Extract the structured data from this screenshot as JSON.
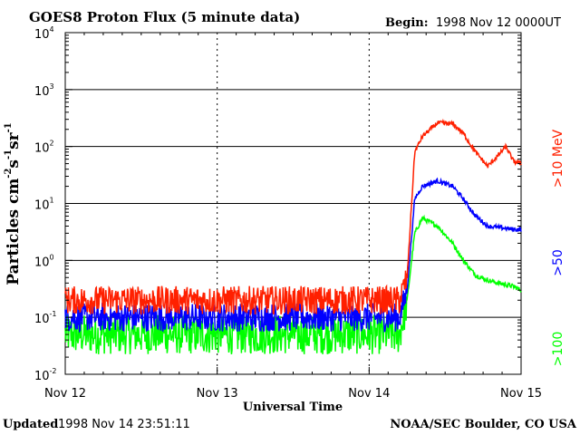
{
  "chart_data": {
    "type": "line",
    "title": "GOES8 Proton Flux (5 minute data)",
    "begin_label": "Begin:",
    "begin_value": "1998 Nov 12 0000UT",
    "xlabel": "Universal Time",
    "ylabel": {
      "text": "Particles cm",
      "sup1": "-2",
      "mid1": "s",
      "sup2": "-1",
      "mid2": "sr",
      "sup3": "-1"
    },
    "x_ticks": [
      "Nov 12",
      "Nov 13",
      "Nov 14",
      "Nov 15"
    ],
    "x_unit": "days since 1998 Nov 12 00:00 UT",
    "xlim": [
      0,
      3
    ],
    "y_scale": "log",
    "ylim": [
      0.01,
      10000
    ],
    "y_ticks": [
      {
        "base": "10",
        "exp": "-2"
      },
      {
        "base": "10",
        "exp": "-1"
      },
      {
        "base": "10",
        "exp": "0"
      },
      {
        "base": "10",
        "exp": "1"
      },
      {
        "base": "10",
        "exp": "2"
      },
      {
        "base": "10",
        "exp": "3"
      },
      {
        "base": "10",
        "exp": "4"
      }
    ],
    "horizontal_grid": true,
    "day_separators": "dashed",
    "series": [
      {
        "name": ">10 MeV",
        "color": "#ff2000",
        "values": [
          [
            0,
            0.2
          ],
          [
            0.5,
            0.2
          ],
          [
            1.0,
            0.2
          ],
          [
            1.5,
            0.2
          ],
          [
            2.0,
            0.2
          ],
          [
            2.2,
            0.2
          ],
          [
            2.25,
            0.5
          ],
          [
            2.3,
            80
          ],
          [
            2.35,
            150
          ],
          [
            2.45,
            260
          ],
          [
            2.55,
            250
          ],
          [
            2.62,
            170
          ],
          [
            2.7,
            80
          ],
          [
            2.78,
            45
          ],
          [
            2.85,
            70
          ],
          [
            2.9,
            100
          ],
          [
            2.95,
            55
          ],
          [
            3.0,
            50
          ]
        ],
        "noise_before": 0.25
      },
      {
        "name": ">50",
        "color": "#0000ff",
        "values": [
          [
            0,
            0.1
          ],
          [
            0.5,
            0.1
          ],
          [
            1.0,
            0.1
          ],
          [
            1.5,
            0.1
          ],
          [
            2.0,
            0.1
          ],
          [
            2.2,
            0.1
          ],
          [
            2.25,
            0.3
          ],
          [
            2.3,
            12
          ],
          [
            2.35,
            20
          ],
          [
            2.45,
            25
          ],
          [
            2.55,
            20
          ],
          [
            2.62,
            12
          ],
          [
            2.7,
            6
          ],
          [
            2.78,
            4
          ],
          [
            2.85,
            3.8
          ],
          [
            2.95,
            3.5
          ],
          [
            3.0,
            3.5
          ]
        ],
        "noise_before": 0.25
      },
      {
        "name": ">100",
        "color": "#00ff00",
        "values": [
          [
            0,
            0.05
          ],
          [
            0.5,
            0.05
          ],
          [
            1.0,
            0.05
          ],
          [
            1.5,
            0.05
          ],
          [
            2.0,
            0.05
          ],
          [
            2.2,
            0.05
          ],
          [
            2.25,
            0.2
          ],
          [
            2.3,
            3
          ],
          [
            2.35,
            5.5
          ],
          [
            2.45,
            4
          ],
          [
            2.55,
            2
          ],
          [
            2.62,
            1
          ],
          [
            2.7,
            0.55
          ],
          [
            2.78,
            0.45
          ],
          [
            2.85,
            0.4
          ],
          [
            2.95,
            0.35
          ],
          [
            3.0,
            0.3
          ]
        ],
        "noise_before": 0.35
      }
    ],
    "legend": [
      {
        "text": ">10  MeV",
        "color": "#ff2000"
      },
      {
        "text": ">50",
        "color": "#0000ff"
      },
      {
        "text": ">100",
        "color": "#00ff00"
      }
    ],
    "legend_placement": "right, rotated vertical"
  },
  "footer": {
    "updated_label": "Updated",
    "updated_value": "1998 Nov 14 23:51:11",
    "credit": "NOAA/SEC Boulder, CO USA"
  }
}
